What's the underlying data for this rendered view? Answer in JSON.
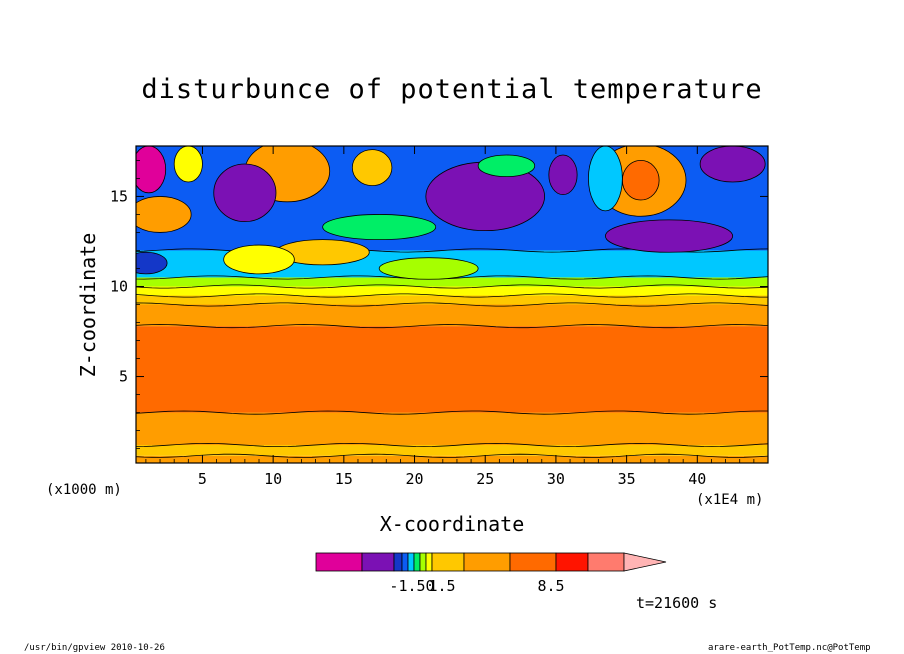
{
  "title": "disturbunce of potential temperature",
  "xlabel": "X-coordinate",
  "ylabel": "Z-coordinate",
  "x_unit_left": "(x1000 m)",
  "x_unit_right": "(x1E4 m)",
  "time_label": "t=21600 s",
  "footer_left": "/usr/bin/gpview  2010-10-26",
  "footer_right": "arare-earth_PotTemp.nc@PotTemp",
  "chart_data": {
    "type": "heatmap",
    "title": "disturbunce of potential temperature",
    "xlabel": "X-coordinate",
    "ylabel": "Z-coordinate",
    "x_ticks": [
      5,
      10,
      15,
      20,
      25,
      30,
      35,
      40
    ],
    "x_tick_labels": [
      "5",
      "10",
      "15",
      "20",
      "25",
      "30",
      "35",
      "40"
    ],
    "xlim": [
      0.3,
      45
    ],
    "y_ticks": [
      5,
      10,
      15
    ],
    "y_tick_labels": [
      "5",
      "10",
      "15"
    ],
    "ylim": [
      0.2,
      17.8
    ],
    "colorbar": {
      "colors": [
        "#e0009a",
        "#7b11b4",
        "#1437c8",
        "#0c5cf3",
        "#00c8ff",
        "#00ee66",
        "#a6ff00",
        "#ffff00",
        "#ffc800",
        "#ff9d00",
        "#ff6a00",
        "#ff1400",
        "#ff7b6e",
        "#ffb4b4"
      ],
      "labels": [
        "-1.50",
        "1.5",
        "8.5"
      ]
    },
    "bands": [
      {
        "z_bottom": 0.2,
        "z_top": 0.6,
        "color": "#ff9d00"
      },
      {
        "z_bottom": 0.6,
        "z_top": 1.2,
        "color": "#ffc800"
      },
      {
        "z_bottom": 1.2,
        "z_top": 3.0,
        "color": "#ff9d00"
      },
      {
        "z_bottom": 3.0,
        "z_top": 7.8,
        "color": "#ff6a00"
      },
      {
        "z_bottom": 7.8,
        "z_top": 9.0,
        "color": "#ff9d00"
      },
      {
        "z_bottom": 9.0,
        "z_top": 9.5,
        "color": "#ffc800"
      },
      {
        "z_bottom": 9.5,
        "z_top": 10.0,
        "color": "#ffff00"
      },
      {
        "z_bottom": 10.0,
        "z_top": 10.5,
        "color": "#a6ff00"
      },
      {
        "z_bottom": 10.5,
        "z_top": 12.0,
        "color": "#00c8ff"
      },
      {
        "z_bottom": 12.0,
        "z_top": 17.8,
        "color": "#0c5cf3"
      }
    ],
    "blobs": [
      {
        "x": 11.0,
        "z": 16.4,
        "rx": 3.0,
        "rz": 1.7,
        "color": "#ff9d00"
      },
      {
        "x": 36.0,
        "z": 15.9,
        "rx": 3.2,
        "rz": 2.0,
        "color": "#ff9d00"
      },
      {
        "x": 36.0,
        "z": 15.9,
        "rx": 1.3,
        "rz": 1.1,
        "color": "#ff6a00"
      },
      {
        "x": 17.0,
        "z": 16.6,
        "rx": 1.4,
        "rz": 1.0,
        "color": "#ffc800"
      },
      {
        "x": 8.0,
        "z": 15.2,
        "rx": 2.2,
        "rz": 1.6,
        "color": "#7b11b4"
      },
      {
        "x": 25.0,
        "z": 15.0,
        "rx": 4.2,
        "rz": 1.9,
        "color": "#7b11b4"
      },
      {
        "x": 38.0,
        "z": 12.8,
        "rx": 4.5,
        "rz": 0.9,
        "color": "#7b11b4"
      },
      {
        "x": 42.5,
        "z": 16.8,
        "rx": 2.3,
        "rz": 1.0,
        "color": "#7b11b4"
      },
      {
        "x": 30.5,
        "z": 16.2,
        "rx": 1.0,
        "rz": 1.1,
        "color": "#7b11b4"
      },
      {
        "x": 1.2,
        "z": 16.5,
        "rx": 1.2,
        "rz": 1.3,
        "color": "#e0009a"
      },
      {
        "x": 4.0,
        "z": 16.8,
        "rx": 1.0,
        "rz": 1.0,
        "color": "#ffff00"
      },
      {
        "x": 2.0,
        "z": 14.0,
        "rx": 2.2,
        "rz": 1.0,
        "color": "#ff9d00"
      },
      {
        "x": 13.5,
        "z": 11.9,
        "rx": 3.3,
        "rz": 0.7,
        "color": "#ffc800"
      },
      {
        "x": 9.0,
        "z": 11.5,
        "rx": 2.5,
        "rz": 0.8,
        "color": "#ffff00"
      },
      {
        "x": 21.0,
        "z": 11.0,
        "rx": 3.5,
        "rz": 0.6,
        "color": "#a6ff00"
      },
      {
        "x": 17.5,
        "z": 13.3,
        "rx": 4.0,
        "rz": 0.7,
        "color": "#00ee66"
      },
      {
        "x": 33.5,
        "z": 16.0,
        "rx": 1.2,
        "rz": 1.8,
        "color": "#00c8ff"
      },
      {
        "x": 26.5,
        "z": 16.7,
        "rx": 2.0,
        "rz": 0.6,
        "color": "#00ee66"
      },
      {
        "x": 1.0,
        "z": 11.3,
        "rx": 1.5,
        "rz": 0.6,
        "color": "#1437c8"
      }
    ]
  }
}
